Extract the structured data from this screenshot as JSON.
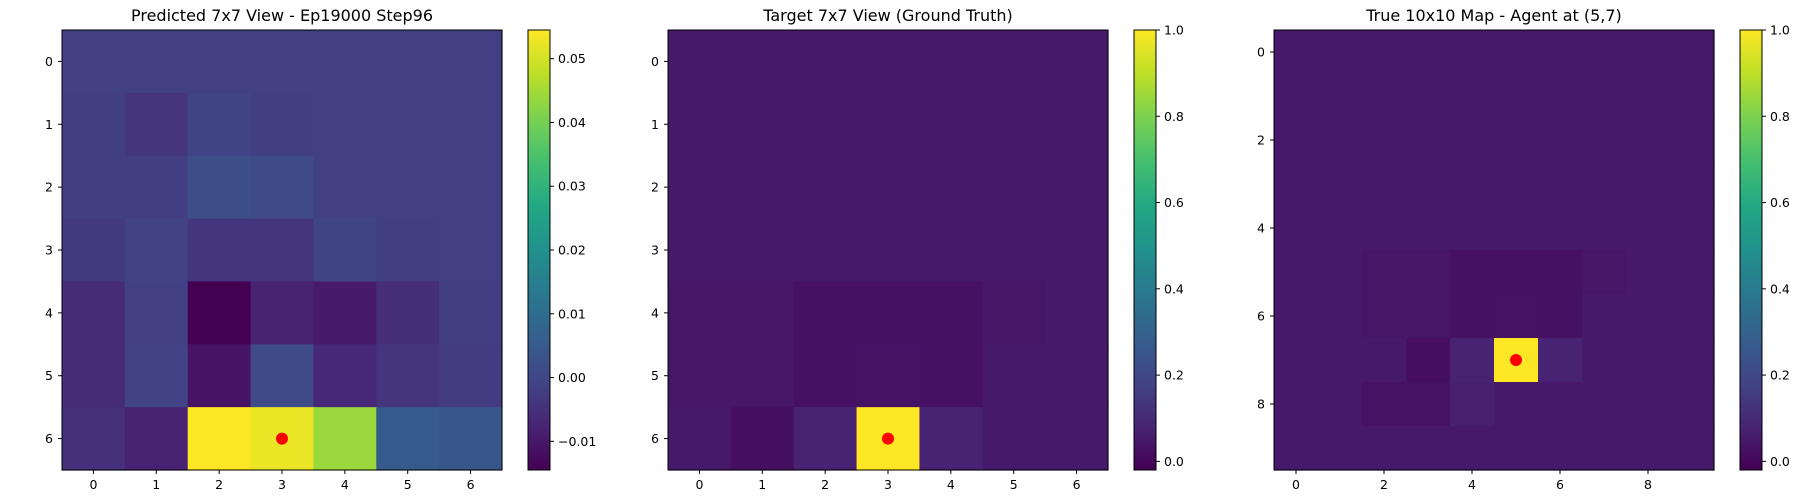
{
  "chart_data": [
    {
      "type": "heatmap",
      "title": "Predicted 7x7 View - Ep19000 Step96",
      "xlabel": "",
      "ylabel": "",
      "rows": 7,
      "cols": 7,
      "x_ticks": [
        0,
        1,
        2,
        3,
        4,
        5,
        6
      ],
      "y_ticks": [
        0,
        1,
        2,
        3,
        4,
        5,
        6
      ],
      "vmin": -0.0145,
      "vmax": 0.0545,
      "colorbar_ticks": [
        -0.01,
        0.0,
        0.01,
        0.02,
        0.03,
        0.04,
        0.05
      ],
      "colorbar_tick_labels": [
        "−0.01",
        "0.00",
        "0.01",
        "0.02",
        "0.03",
        "0.04",
        "0.05"
      ],
      "values": [
        [
          -0.0015,
          -0.0015,
          -0.0015,
          -0.0015,
          -0.0015,
          -0.0015,
          -0.0015
        ],
        [
          -0.002,
          -0.004,
          -0.0005,
          -0.002,
          -0.0015,
          -0.0015,
          -0.0015
        ],
        [
          -0.002,
          -0.002,
          0.002,
          0.001,
          -0.0015,
          -0.0015,
          -0.0015
        ],
        [
          -0.003,
          -0.001,
          -0.004,
          -0.004,
          -0.0005,
          -0.002,
          -0.0015
        ],
        [
          -0.006,
          -0.0015,
          -0.0145,
          -0.008,
          -0.0095,
          -0.0055,
          -0.002
        ],
        [
          -0.006,
          -0.001,
          -0.011,
          0.001,
          -0.007,
          -0.004,
          -0.0025
        ],
        [
          -0.005,
          -0.008,
          0.0545,
          0.0525,
          0.044,
          0.005,
          0.004
        ]
      ],
      "markers": [
        {
          "x": 3,
          "y": 6,
          "color": "#ff0000"
        }
      ]
    },
    {
      "type": "heatmap",
      "title": "Target 7x7 View (Ground Truth)",
      "xlabel": "",
      "ylabel": "",
      "rows": 7,
      "cols": 7,
      "x_ticks": [
        0,
        1,
        2,
        3,
        4,
        5,
        6
      ],
      "y_ticks": [
        0,
        1,
        2,
        3,
        4,
        5,
        6
      ],
      "vmin": -0.02,
      "vmax": 1.0,
      "colorbar_ticks": [
        0.0,
        0.2,
        0.4,
        0.6,
        0.8,
        1.0
      ],
      "colorbar_tick_labels": [
        "0.0",
        "0.2",
        "0.4",
        "0.6",
        "0.8",
        "1.0"
      ],
      "values": [
        [
          0.05,
          0.05,
          0.05,
          0.05,
          0.05,
          0.05,
          0.05
        ],
        [
          0.05,
          0.05,
          0.05,
          0.05,
          0.05,
          0.05,
          0.05
        ],
        [
          0.05,
          0.05,
          0.05,
          0.05,
          0.05,
          0.05,
          0.05
        ],
        [
          0.05,
          0.05,
          0.05,
          0.05,
          0.05,
          0.05,
          0.05
        ],
        [
          0.04,
          0.04,
          0.025,
          0.025,
          0.025,
          0.04,
          0.05
        ],
        [
          0.04,
          0.04,
          0.025,
          0.03,
          0.025,
          0.05,
          0.05
        ],
        [
          0.05,
          0.02,
          0.08,
          1.0,
          0.08,
          0.05,
          0.05
        ]
      ],
      "markers": [
        {
          "x": 3,
          "y": 6,
          "color": "#ff0000"
        }
      ]
    },
    {
      "type": "heatmap",
      "title": "True 10x10 Map - Agent at (5,7)",
      "xlabel": "",
      "ylabel": "",
      "rows": 10,
      "cols": 10,
      "x_ticks": [
        0,
        2,
        4,
        6,
        8
      ],
      "y_ticks": [
        0,
        2,
        4,
        6,
        8
      ],
      "vmin": -0.02,
      "vmax": 1.0,
      "colorbar_ticks": [
        0.0,
        0.2,
        0.4,
        0.6,
        0.8,
        1.0
      ],
      "colorbar_tick_labels": [
        "0.0",
        "0.2",
        "0.4",
        "0.6",
        "0.8",
        "1.0"
      ],
      "values": [
        [
          0.05,
          0.05,
          0.05,
          0.05,
          0.05,
          0.05,
          0.05,
          0.05,
          0.05,
          0.05
        ],
        [
          0.05,
          0.05,
          0.05,
          0.05,
          0.05,
          0.05,
          0.05,
          0.05,
          0.05,
          0.05
        ],
        [
          0.05,
          0.05,
          0.05,
          0.05,
          0.05,
          0.05,
          0.05,
          0.05,
          0.05,
          0.05
        ],
        [
          0.05,
          0.05,
          0.05,
          0.05,
          0.05,
          0.05,
          0.05,
          0.05,
          0.05,
          0.05
        ],
        [
          0.05,
          0.05,
          0.05,
          0.05,
          0.05,
          0.05,
          0.05,
          0.05,
          0.05,
          0.05
        ],
        [
          0.05,
          0.05,
          0.04,
          0.04,
          0.025,
          0.025,
          0.025,
          0.04,
          0.05,
          0.05
        ],
        [
          0.05,
          0.05,
          0.04,
          0.04,
          0.025,
          0.03,
          0.025,
          0.05,
          0.05,
          0.05
        ],
        [
          0.05,
          0.05,
          0.05,
          0.02,
          0.08,
          1.0,
          0.08,
          0.05,
          0.05,
          0.05
        ],
        [
          0.05,
          0.05,
          0.03,
          0.03,
          0.07,
          0.05,
          0.05,
          0.05,
          0.05,
          0.05
        ],
        [
          0.05,
          0.05,
          0.05,
          0.05,
          0.05,
          0.05,
          0.05,
          0.05,
          0.05,
          0.05
        ]
      ],
      "markers": [
        {
          "x": 5,
          "y": 7,
          "color": "#ff0000"
        }
      ]
    }
  ]
}
